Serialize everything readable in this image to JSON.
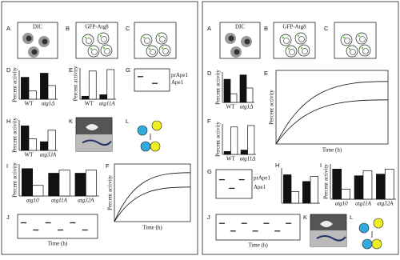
{
  "left": {
    "A": {
      "label": "A",
      "caption": "DIC"
    },
    "B": {
      "label": "B",
      "caption": "GFP-Atg8"
    },
    "C": {
      "label": "C"
    },
    "D": {
      "label": "D",
      "ylabel": "Percent activity",
      "categories": [
        "WT",
        "atg1Δ"
      ],
      "values": [
        [
          80,
          30
        ],
        [
          95,
          50
        ]
      ]
    },
    "E": {
      "label": "E",
      "ylabel": "Percent activity",
      "categories": [
        "WT",
        "atg11A"
      ],
      "values": [
        [
          10,
          95
        ],
        [
          15,
          100
        ]
      ]
    },
    "G": {
      "label": "G",
      "bands": [
        "prApe1",
        "Ape1"
      ]
    },
    "H": {
      "label": "H",
      "ylabel": "Percent activity",
      "categories": [
        "WT",
        "atg33A"
      ],
      "values": [
        [
          85,
          40
        ],
        [
          30,
          70
        ]
      ]
    },
    "K": {
      "label": "K"
    },
    "L": {
      "label": "L"
    },
    "I": {
      "label": "I",
      "ylabel": "Percent activity",
      "categories": [
        "atg10",
        "atg11A",
        "atg32A"
      ],
      "values": [
        [
          90,
          35
        ],
        [
          75,
          85
        ],
        [
          75,
          85
        ]
      ]
    },
    "F": {
      "label": "F",
      "ylabel": "Percent activity",
      "xlabel": "Time (h)"
    },
    "J": {
      "label": "J",
      "xlabel": "Time (h)"
    }
  },
  "right": {
    "A": {
      "label": "A",
      "caption": "DIC"
    },
    "B": {
      "label": "B",
      "caption": "GFP-Atg8"
    },
    "C": {
      "label": "C"
    },
    "D": {
      "label": "D",
      "ylabel": "Percent activity",
      "categories": [
        "WT",
        "atg1Δ"
      ],
      "values": [
        [
          80,
          30
        ],
        [
          95,
          50
        ]
      ]
    },
    "E": {
      "label": "E",
      "ylabel": "Percent activity",
      "xlabel": "Time (h)"
    },
    "F": {
      "label": "F",
      "ylabel": "Percent activity",
      "categories": [
        "WT",
        "atg11Δ"
      ],
      "values": [
        [
          10,
          95
        ],
        [
          15,
          100
        ]
      ]
    },
    "G": {
      "label": "G",
      "bands": [
        "prApe1",
        "Ape1"
      ]
    },
    "H": {
      "label": "H",
      "values": [
        [
          85,
          35
        ],
        [
          65,
          80
        ]
      ]
    },
    "I": {
      "label": "I",
      "ylabel": "Percent activity",
      "categories": [
        "atg10",
        "atg11A",
        "atg32A"
      ],
      "values": [
        [
          90,
          30
        ],
        [
          70,
          85
        ],
        [
          75,
          90
        ]
      ]
    },
    "J": {
      "label": "J",
      "xlabel": "Time (h)"
    },
    "K": {
      "label": "K"
    },
    "L": {
      "label": "L"
    }
  }
}
